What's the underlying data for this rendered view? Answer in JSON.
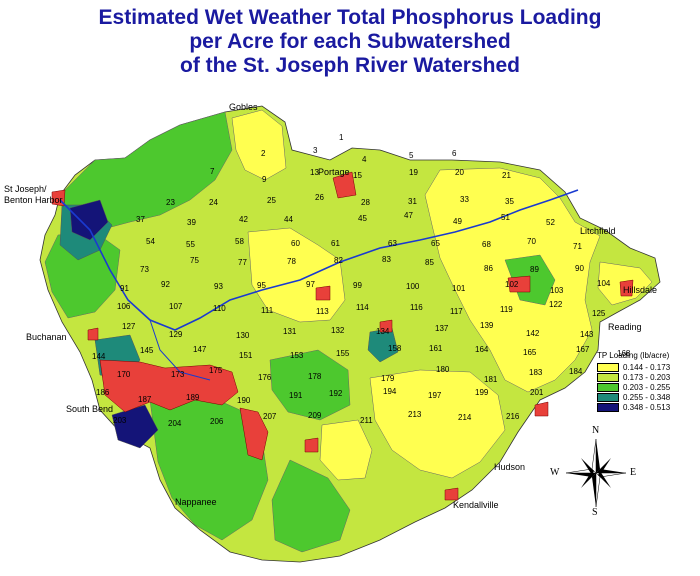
{
  "title": {
    "line1": "Estimated Wet Weather Total Phosphorus Loading",
    "line2": "per Acre for each Subwatershed",
    "line3": "of the St. Joseph River Watershed"
  },
  "cities": [
    {
      "id": "gobles",
      "label": "Gobles"
    },
    {
      "id": "portage",
      "label": "Portage"
    },
    {
      "id": "st-joseph-1",
      "label": "St Joseph/"
    },
    {
      "id": "st-joseph-2",
      "label": "Benton Harbor"
    },
    {
      "id": "litchfield",
      "label": "Litchfield"
    },
    {
      "id": "hillsdale",
      "label": "Hillsdale"
    },
    {
      "id": "reading",
      "label": "Reading"
    },
    {
      "id": "buchanan",
      "label": "Buchanan"
    },
    {
      "id": "south-bend",
      "label": "South Bend"
    },
    {
      "id": "hudson",
      "label": "Hudson"
    },
    {
      "id": "kendallville",
      "label": "Kendallville"
    },
    {
      "id": "nappanee",
      "label": "Nappanee"
    }
  ],
  "subwatershed_labels": [
    "1",
    "2",
    "3",
    "4",
    "5",
    "6",
    "7",
    "9",
    "13",
    "15",
    "19",
    "20",
    "21",
    "23",
    "24",
    "25",
    "26",
    "28",
    "31",
    "33",
    "35",
    "37",
    "39",
    "42",
    "44",
    "45",
    "47",
    "49",
    "51",
    "52",
    "54",
    "55",
    "58",
    "60",
    "61",
    "63",
    "65",
    "68",
    "70",
    "71",
    "73",
    "75",
    "77",
    "78",
    "82",
    "83",
    "85",
    "86",
    "89",
    "90",
    "91",
    "92",
    "93",
    "95",
    "97",
    "99",
    "100",
    "101",
    "102",
    "103",
    "104",
    "106",
    "107",
    "110",
    "111",
    "113",
    "114",
    "116",
    "117",
    "119",
    "122",
    "125",
    "127",
    "129",
    "130",
    "131",
    "132",
    "134",
    "137",
    "139",
    "142",
    "143",
    "144",
    "145",
    "147",
    "151",
    "153",
    "155",
    "158",
    "161",
    "164",
    "165",
    "167",
    "168",
    "170",
    "173",
    "175",
    "176",
    "178",
    "179",
    "180",
    "181",
    "183",
    "184",
    "186",
    "187",
    "189",
    "190",
    "191",
    "192",
    "194",
    "197",
    "199",
    "201",
    "203",
    "204",
    "206",
    "207",
    "209",
    "211",
    "213",
    "214",
    "216"
  ],
  "legend": {
    "title": "TP Loading (lb/acre)",
    "classes": [
      {
        "label": "0.144 - 0.173",
        "color": "#ffff50"
      },
      {
        "label": "0.173 - 0.203",
        "color": "#c4e640"
      },
      {
        "label": "0.203 - 0.255",
        "color": "#4dc82e"
      },
      {
        "label": "0.255 - 0.348",
        "color": "#1e8a7a"
      },
      {
        "label": "0.348 - 0.513",
        "color": "#141478"
      }
    ]
  },
  "urban_color": "#e8403a",
  "river_color": "#1a3ad0",
  "compass": {
    "n": "N",
    "s": "S",
    "e": "E",
    "w": "W"
  }
}
